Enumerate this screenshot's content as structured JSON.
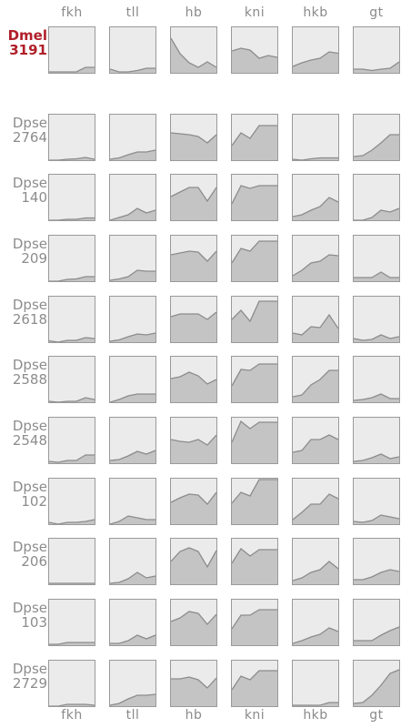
{
  "chart_data": {
    "type": "area",
    "genes": [
      "fkh",
      "tll",
      "hb",
      "kni",
      "hkb",
      "gt"
    ],
    "ylim": [
      0,
      1
    ],
    "colors": {
      "fill": "#c4c4c4",
      "line": "#8c8c8c",
      "panel_bg": "#ebebeb",
      "border": "#9a9a9a",
      "ref_label": "#b0202a",
      "label": "#8c8c8c"
    },
    "rows": [
      {
        "species": "Dmel",
        "id": "3191",
        "reference": true,
        "panels": [
          [
            0.02,
            0.02,
            0.02,
            0.02,
            0.12,
            0.12
          ],
          [
            0.08,
            0.02,
            0.02,
            0.05,
            0.1,
            0.1
          ],
          [
            0.76,
            0.42,
            0.22,
            0.12,
            0.24,
            0.12
          ],
          [
            0.48,
            0.54,
            0.5,
            0.32,
            0.38,
            0.34
          ],
          [
            0.14,
            0.22,
            0.28,
            0.32,
            0.46,
            0.43
          ],
          [
            0.08,
            0.08,
            0.05,
            0.08,
            0.1,
            0.24
          ]
        ]
      },
      {
        "species": "Dpse",
        "id": "2764",
        "reference": false,
        "panels": [
          [
            0.0,
            0.0,
            0.02,
            0.03,
            0.06,
            0.02
          ],
          [
            0.02,
            0.05,
            0.12,
            0.18,
            0.18,
            0.22
          ],
          [
            0.6,
            0.58,
            0.56,
            0.52,
            0.38,
            0.56
          ],
          [
            0.32,
            0.6,
            0.48,
            0.76,
            0.76,
            0.76
          ],
          [
            0.02,
            0.0,
            0.03,
            0.05,
            0.05,
            0.05
          ],
          [
            0.08,
            0.1,
            0.22,
            0.38,
            0.56,
            0.56
          ]
        ]
      },
      {
        "species": "Dpse",
        "id": "140",
        "reference": false,
        "panels": [
          [
            0.0,
            0.0,
            0.02,
            0.02,
            0.05,
            0.05
          ],
          [
            0.0,
            0.06,
            0.12,
            0.26,
            0.16,
            0.22
          ],
          [
            0.52,
            0.62,
            0.72,
            0.72,
            0.42,
            0.72
          ],
          [
            0.36,
            0.76,
            0.7,
            0.76,
            0.76,
            0.76
          ],
          [
            0.08,
            0.12,
            0.22,
            0.3,
            0.5,
            0.4
          ],
          [
            0.0,
            0.0,
            0.06,
            0.22,
            0.18,
            0.26
          ]
        ]
      },
      {
        "species": "Dpse",
        "id": "209",
        "reference": false,
        "panels": [
          [
            0.0,
            0.0,
            0.04,
            0.05,
            0.1,
            0.1
          ],
          [
            0.02,
            0.05,
            0.1,
            0.24,
            0.22,
            0.22
          ],
          [
            0.58,
            0.62,
            0.66,
            0.64,
            0.44,
            0.66
          ],
          [
            0.4,
            0.72,
            0.66,
            0.88,
            0.88,
            0.88
          ],
          [
            0.12,
            0.24,
            0.4,
            0.44,
            0.58,
            0.56
          ],
          [
            0.08,
            0.08,
            0.08,
            0.2,
            0.08,
            0.08
          ]
        ]
      },
      {
        "species": "Dpse",
        "id": "2618",
        "reference": false,
        "panels": [
          [
            0.03,
            0.0,
            0.04,
            0.04,
            0.1,
            0.08
          ],
          [
            0.02,
            0.05,
            0.12,
            0.18,
            0.16,
            0.2
          ],
          [
            0.56,
            0.62,
            0.62,
            0.62,
            0.5,
            0.66
          ],
          [
            0.5,
            0.7,
            0.46,
            0.9,
            0.9,
            0.9
          ],
          [
            0.2,
            0.16,
            0.34,
            0.32,
            0.6,
            0.3
          ],
          [
            0.08,
            0.04,
            0.06,
            0.16,
            0.08,
            0.12
          ]
        ]
      },
      {
        "species": "Dpse",
        "id": "2588",
        "reference": false,
        "panels": [
          [
            0.02,
            0.0,
            0.02,
            0.02,
            0.1,
            0.06
          ],
          [
            0.0,
            0.06,
            0.14,
            0.18,
            0.18,
            0.18
          ],
          [
            0.52,
            0.56,
            0.66,
            0.58,
            0.4,
            0.5
          ],
          [
            0.36,
            0.72,
            0.7,
            0.84,
            0.84,
            0.84
          ],
          [
            0.12,
            0.16,
            0.38,
            0.5,
            0.7,
            0.7
          ],
          [
            0.04,
            0.06,
            0.1,
            0.18,
            0.08,
            0.08
          ]
        ]
      },
      {
        "species": "Dpse",
        "id": "2548",
        "reference": false,
        "panels": [
          [
            0.04,
            0.02,
            0.06,
            0.06,
            0.18,
            0.18
          ],
          [
            0.06,
            0.08,
            0.16,
            0.26,
            0.2,
            0.28
          ],
          [
            0.52,
            0.48,
            0.46,
            0.52,
            0.4,
            0.62
          ],
          [
            0.46,
            0.92,
            0.76,
            0.9,
            0.9,
            0.9
          ],
          [
            0.24,
            0.28,
            0.52,
            0.52,
            0.62,
            0.52
          ],
          [
            0.04,
            0.06,
            0.12,
            0.2,
            0.1,
            0.14
          ]
        ]
      },
      {
        "species": "Dpse",
        "id": "102",
        "reference": false,
        "panels": [
          [
            0.04,
            0.0,
            0.04,
            0.04,
            0.06,
            0.1
          ],
          [
            0.0,
            0.06,
            0.18,
            0.14,
            0.1,
            0.1
          ],
          [
            0.48,
            0.58,
            0.66,
            0.64,
            0.44,
            0.7
          ],
          [
            0.46,
            0.7,
            0.62,
            0.98,
            0.98,
            0.98
          ],
          [
            0.1,
            0.26,
            0.44,
            0.44,
            0.66,
            0.56
          ],
          [
            0.06,
            0.04,
            0.08,
            0.2,
            0.16,
            0.12
          ]
        ]
      },
      {
        "species": "Dpse",
        "id": "206",
        "reference": false,
        "panels": [
          [
            0.02,
            0.02,
            0.02,
            0.02,
            0.02,
            0.02
          ],
          [
            0.02,
            0.04,
            0.12,
            0.26,
            0.14,
            0.18
          ],
          [
            0.5,
            0.72,
            0.8,
            0.72,
            0.38,
            0.74
          ],
          [
            0.46,
            0.78,
            0.62,
            0.76,
            0.76,
            0.76
          ],
          [
            0.08,
            0.14,
            0.26,
            0.32,
            0.5,
            0.34
          ],
          [
            0.1,
            0.1,
            0.16,
            0.26,
            0.32,
            0.28
          ]
        ]
      },
      {
        "species": "Dpse",
        "id": "103",
        "reference": false,
        "panels": [
          [
            0.02,
            0.02,
            0.06,
            0.06,
            0.06,
            0.06
          ],
          [
            0.04,
            0.04,
            0.1,
            0.22,
            0.14,
            0.22
          ],
          [
            0.52,
            0.6,
            0.74,
            0.7,
            0.46,
            0.68
          ],
          [
            0.36,
            0.66,
            0.66,
            0.78,
            0.78,
            0.78
          ],
          [
            0.04,
            0.1,
            0.18,
            0.24,
            0.38,
            0.3
          ],
          [
            0.1,
            0.1,
            0.1,
            0.22,
            0.32,
            0.4
          ]
        ]
      },
      {
        "species": "Dpse",
        "id": "2729",
        "reference": false,
        "panels": [
          [
            0.0,
            0.0,
            0.04,
            0.04,
            0.04,
            0.02
          ],
          [
            0.02,
            0.06,
            0.16,
            0.24,
            0.24,
            0.26
          ],
          [
            0.6,
            0.6,
            0.64,
            0.58,
            0.4,
            0.62
          ],
          [
            0.36,
            0.66,
            0.58,
            0.78,
            0.78,
            0.78
          ],
          [
            0.02,
            0.02,
            0.02,
            0.02,
            0.08,
            0.08
          ],
          [
            0.06,
            0.08,
            0.24,
            0.46,
            0.72,
            0.8
          ]
        ]
      }
    ]
  }
}
